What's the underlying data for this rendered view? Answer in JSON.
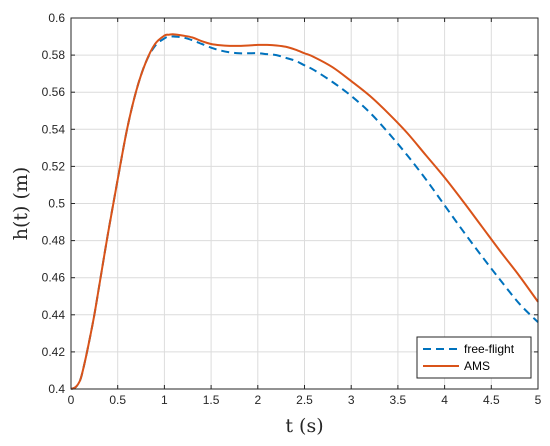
{
  "chart_data": {
    "type": "line",
    "xlabel": "t (s)",
    "ylabel": "h(t) (m)",
    "xlim": [
      0,
      5
    ],
    "ylim": [
      0.4,
      0.6
    ],
    "xticks": [
      0,
      0.5,
      1,
      1.5,
      2,
      2.5,
      3,
      3.5,
      4,
      4.5,
      5
    ],
    "xtick_labels": [
      "0",
      "0.5",
      "1",
      "1.5",
      "2",
      "2.5",
      "3",
      "3.5",
      "4",
      "4.5",
      "5"
    ],
    "yticks": [
      0.4,
      0.42,
      0.44,
      0.46,
      0.48,
      0.5,
      0.52,
      0.54,
      0.56,
      0.58,
      0.6
    ],
    "ytick_labels": [
      "0.4",
      "0.42",
      "0.44",
      "0.46",
      "0.48",
      "0.5",
      "0.52",
      "0.54",
      "0.56",
      "0.58",
      "0.6"
    ],
    "grid": true,
    "legend_position": "bottom-right",
    "series": [
      {
        "name": "free-flight",
        "color": "#0072BD",
        "style": "dashed",
        "x": [
          0,
          0.05,
          0.1,
          0.15,
          0.2,
          0.25,
          0.3,
          0.4,
          0.5,
          0.6,
          0.7,
          0.8,
          0.9,
          1.0,
          1.05,
          1.1,
          1.2,
          1.3,
          1.4,
          1.5,
          1.6,
          1.7,
          1.8,
          1.9,
          2.0,
          2.1,
          2.2,
          2.3,
          2.4,
          2.5,
          2.6,
          2.8,
          3.0,
          3.2,
          3.4,
          3.6,
          3.8,
          4.0,
          4.2,
          4.4,
          4.6,
          4.8,
          5.0
        ],
        "y": [
          0.4,
          0.401,
          0.405,
          0.415,
          0.427,
          0.44,
          0.455,
          0.485,
          0.513,
          0.54,
          0.561,
          0.576,
          0.585,
          0.589,
          0.59,
          0.59,
          0.5895,
          0.588,
          0.586,
          0.584,
          0.5825,
          0.5815,
          0.581,
          0.581,
          0.581,
          0.5805,
          0.58,
          0.5785,
          0.577,
          0.5745,
          0.572,
          0.5655,
          0.558,
          0.549,
          0.538,
          0.526,
          0.513,
          0.499,
          0.485,
          0.4715,
          0.4585,
          0.446,
          0.436
        ]
      },
      {
        "name": "AMS",
        "color": "#D95319",
        "style": "solid",
        "x": [
          0,
          0.05,
          0.1,
          0.15,
          0.2,
          0.25,
          0.3,
          0.4,
          0.5,
          0.6,
          0.7,
          0.8,
          0.9,
          1.0,
          1.05,
          1.1,
          1.2,
          1.3,
          1.4,
          1.5,
          1.6,
          1.7,
          1.8,
          1.9,
          2.0,
          2.1,
          2.2,
          2.3,
          2.4,
          2.5,
          2.6,
          2.8,
          3.0,
          3.2,
          3.4,
          3.6,
          3.8,
          4.0,
          4.2,
          4.4,
          4.6,
          4.8,
          5.0
        ],
        "y": [
          0.4,
          0.401,
          0.405,
          0.415,
          0.427,
          0.44,
          0.455,
          0.485,
          0.513,
          0.54,
          0.561,
          0.576,
          0.586,
          0.5905,
          0.591,
          0.5912,
          0.5905,
          0.5895,
          0.5875,
          0.586,
          0.5853,
          0.585,
          0.585,
          0.5852,
          0.5855,
          0.5855,
          0.5852,
          0.5845,
          0.583,
          0.581,
          0.579,
          0.5735,
          0.566,
          0.558,
          0.5485,
          0.538,
          0.526,
          0.514,
          0.501,
          0.4875,
          0.474,
          0.461,
          0.447
        ]
      }
    ]
  }
}
